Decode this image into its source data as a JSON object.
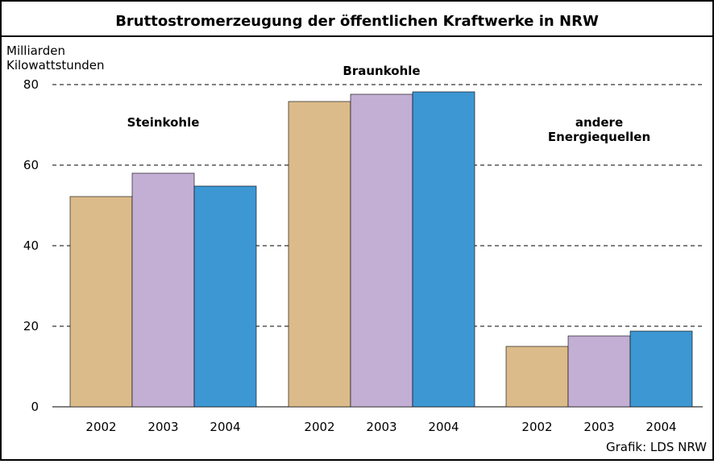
{
  "chart_data": {
    "type": "grouped-bar",
    "title": "Bruttostromerzeugung der öffentlichen Kraftwerke in NRW",
    "y_label": "Milliarden Kilowattstunden",
    "categories": [
      "Steinkohle",
      "Braunkohle",
      "andere Energiequellen"
    ],
    "series": [
      {
        "name": "2002",
        "color": "#dcbb8a",
        "values": [
          52.2,
          75.8,
          15
        ]
      },
      {
        "name": "2003",
        "color": "#c3aed4",
        "values": [
          58,
          77.6,
          17.6
        ]
      },
      {
        "name": "2004",
        "color": "#3d97d3",
        "values": [
          54.8,
          78.2,
          18.8
        ]
      }
    ],
    "ylim": [
      0,
      80
    ],
    "yticks": [
      0,
      20,
      40,
      60,
      80
    ],
    "grid": true,
    "source": "Grafik: LDS NRW"
  }
}
